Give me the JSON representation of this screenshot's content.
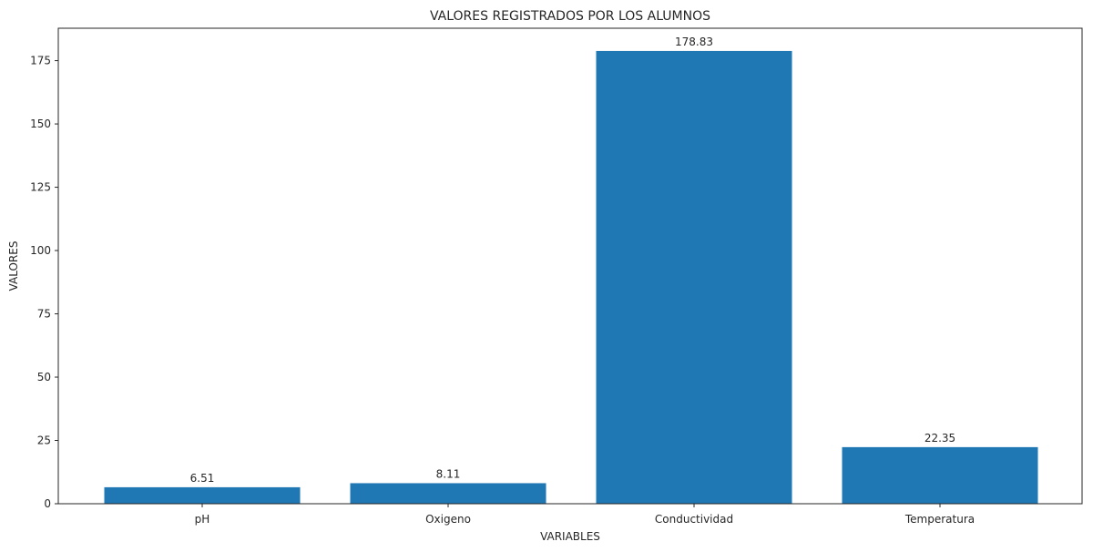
{
  "chart_data": {
    "type": "bar",
    "title": "VALORES REGISTRADOS POR LOS ALUMNOS",
    "xlabel": "VARIABLES",
    "ylabel": "VALORES",
    "categories": [
      "pH",
      "Oxigeno",
      "Conductividad",
      "Temperatura"
    ],
    "values": [
      6.51,
      8.11,
      178.83,
      22.35
    ],
    "value_labels": [
      "6.51",
      "8.11",
      "178.83",
      "22.35"
    ],
    "ylim": [
      0,
      187.8
    ],
    "yticks": [
      0,
      25,
      50,
      75,
      100,
      125,
      150,
      175
    ],
    "ytick_labels": [
      "0",
      "25",
      "50",
      "75",
      "100",
      "125",
      "150",
      "175"
    ],
    "bar_color": "#1f77b4",
    "grid": false,
    "legend": "none"
  }
}
